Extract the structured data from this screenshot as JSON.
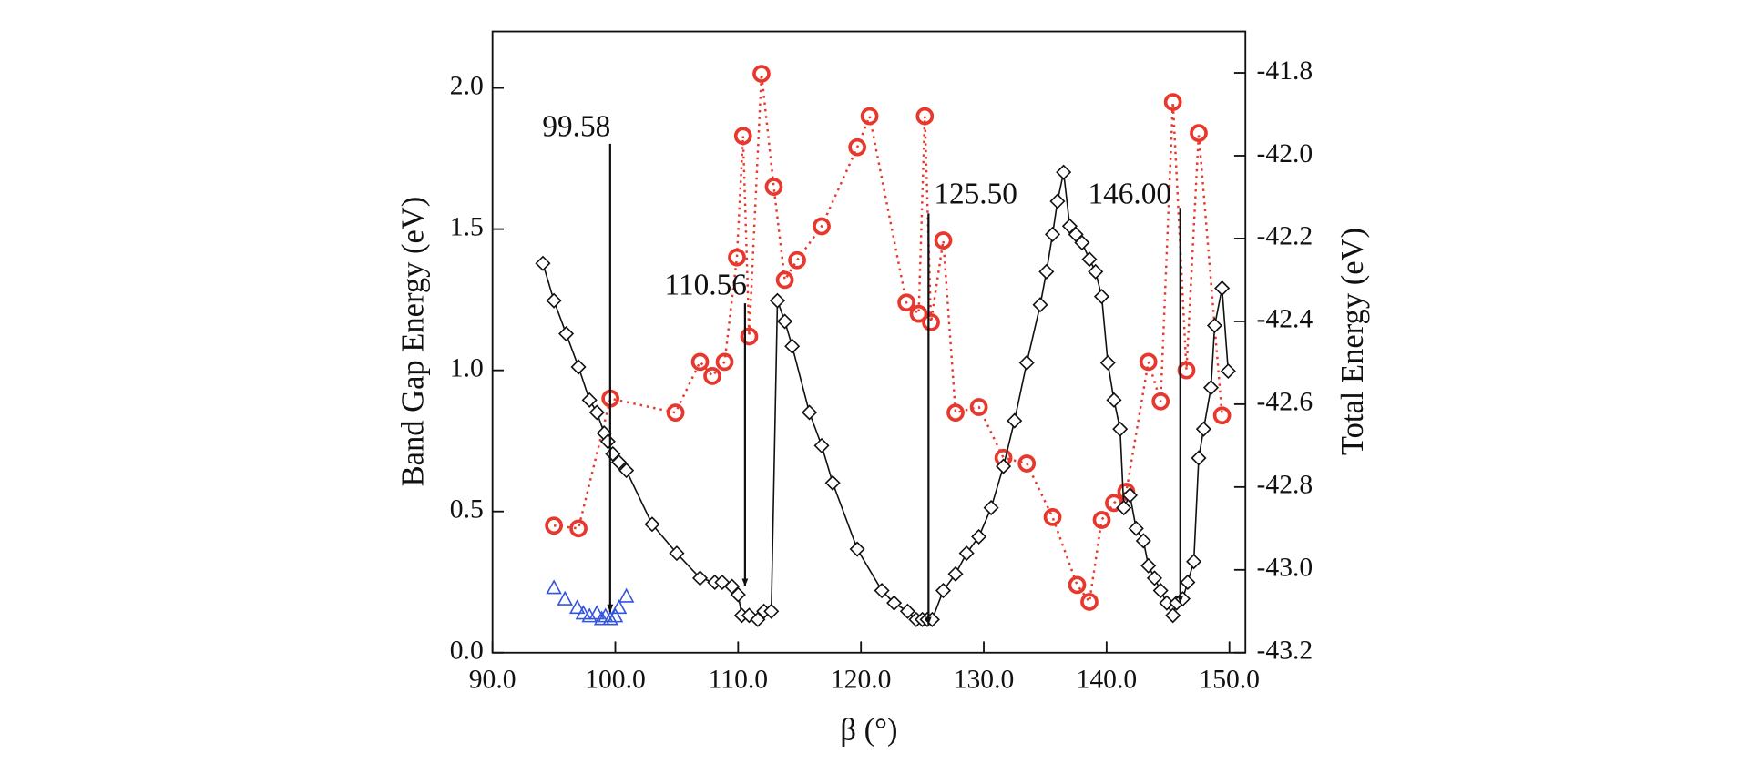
{
  "chart_data": {
    "type": "scatter",
    "x_label": "β (°)",
    "y_label": "Band Gap Energy (eV)",
    "y2_label": "Total Energy (eV)",
    "xlim": [
      90,
      151.3
    ],
    "ylim": [
      0,
      2.2
    ],
    "y2lim": [
      -43.2,
      -41.7
    ],
    "xticks": [
      {
        "value": 90,
        "label": "90.0"
      },
      {
        "value": 100,
        "label": "100.0"
      },
      {
        "value": 110,
        "label": "110.0"
      },
      {
        "value": 120,
        "label": "120.0"
      },
      {
        "value": 130,
        "label": "130.0"
      },
      {
        "value": 140,
        "label": "140.0"
      },
      {
        "value": 150,
        "label": "150.0"
      }
    ],
    "yticks": [
      {
        "value": 0,
        "label": "0.0"
      },
      0.5,
      {
        "value": 1,
        "label": "1.0"
      },
      1.5,
      {
        "value": 2,
        "label": "2.0"
      }
    ],
    "y2ticks": [
      -43.2,
      {
        "value": -43,
        "label": "-43.0"
      },
      -42.8,
      -42.6,
      -42.4,
      -42.2,
      {
        "value": -42,
        "label": "-42.0"
      },
      -41.8
    ],
    "annotations": [
      {
        "text": "99.58",
        "x": 99.58
      },
      {
        "text": "110.56",
        "x": 110.56
      },
      {
        "text": "125.50",
        "x": 125.5
      },
      {
        "text": "146.00",
        "x": 146.0
      }
    ],
    "series": [
      {
        "color": "#e8382d",
        "marker": "circle",
        "line": "dotted",
        "axis": "y",
        "x": [
          95.0,
          97.0,
          99.6,
          104.9,
          106.9,
          107.9,
          108.9,
          109.9,
          110.4,
          110.9,
          111.9,
          112.9,
          113.8,
          114.8,
          116.8,
          119.7,
          120.7,
          123.7,
          124.7,
          125.2,
          125.7,
          126.7,
          127.7,
          129.6,
          131.6,
          133.5,
          135.6,
          137.6,
          138.6,
          139.6,
          140.6,
          141.6,
          143.4,
          144.4,
          145.4,
          146.5,
          147.5,
          149.4
        ],
        "values": [
          0.45,
          0.44,
          0.9,
          0.85,
          1.03,
          0.98,
          1.03,
          1.4,
          1.83,
          1.12,
          2.05,
          1.65,
          1.32,
          1.39,
          1.51,
          1.79,
          1.9,
          1.24,
          1.2,
          1.9,
          1.17,
          1.46,
          0.85,
          0.87,
          0.69,
          0.67,
          0.48,
          0.24,
          0.18,
          0.47,
          0.53,
          0.57,
          1.03,
          0.89,
          1.95,
          1.0,
          1.84,
          0.84
        ]
      },
      {
        "color": "#3355dd",
        "marker": "triangle",
        "line": "none",
        "axis": "y",
        "x": [
          95.0,
          95.9,
          96.9,
          97.4,
          97.9,
          98.5,
          98.9,
          99.2,
          99.6,
          100.0,
          100.3,
          100.9
        ],
        "values": [
          0.23,
          0.19,
          0.16,
          0.14,
          0.13,
          0.14,
          0.12,
          0.13,
          0.12,
          0.13,
          0.16,
          0.2
        ]
      },
      {
        "color": "#111111",
        "marker": "diamond",
        "line": "solid",
        "axis": "y2",
        "x": [
          94.1,
          95.0,
          96.0,
          97.0,
          97.9,
          98.5,
          99.1,
          99.4,
          99.8,
          100.3,
          100.9,
          103.0,
          105.0,
          106.9,
          108.1,
          108.7,
          109.5,
          110.0,
          110.3,
          110.9,
          111.6,
          112.1,
          112.7,
          113.2,
          113.8,
          114.4,
          115.8,
          116.8,
          117.7,
          119.7,
          121.7,
          122.7,
          123.8,
          124.5,
          125.0,
          125.4,
          125.8,
          126.7,
          127.7,
          128.6,
          129.6,
          130.6,
          131.6,
          132.5,
          133.5,
          134.6,
          135.1,
          135.6,
          136.0,
          136.5,
          137.0,
          137.5,
          138.0,
          138.6,
          139.1,
          139.6,
          140.1,
          140.6,
          141.1,
          141.4,
          141.9,
          142.4,
          143.0,
          143.4,
          143.9,
          144.4,
          144.9,
          145.4,
          145.7,
          146.2,
          146.6,
          147.1,
          147.5,
          147.9,
          148.5,
          148.8,
          149.4,
          149.9
        ],
        "values": [
          -42.26,
          -42.35,
          -42.43,
          -42.51,
          -42.59,
          -42.62,
          -42.67,
          -42.69,
          -42.72,
          -42.74,
          -42.76,
          -42.89,
          -42.96,
          -43.02,
          -43.03,
          -43.03,
          -43.04,
          -43.06,
          -43.11,
          -43.11,
          -43.12,
          -43.1,
          -43.1,
          -42.35,
          -42.4,
          -42.46,
          -42.62,
          -42.7,
          -42.79,
          -42.95,
          -43.05,
          -43.08,
          -43.1,
          -43.12,
          -43.12,
          -43.12,
          -43.12,
          -43.05,
          -43.01,
          -42.96,
          -42.92,
          -42.85,
          -42.75,
          -42.64,
          -42.5,
          -42.36,
          -42.28,
          -42.19,
          -42.11,
          -42.04,
          -42.17,
          -42.19,
          -42.21,
          -42.25,
          -42.28,
          -42.34,
          -42.5,
          -42.59,
          -42.66,
          -42.85,
          -42.82,
          -42.9,
          -42.93,
          -42.99,
          -43.02,
          -43.05,
          -43.08,
          -43.11,
          -43.08,
          -43.07,
          -43.03,
          -42.98,
          -42.73,
          -42.66,
          -42.56,
          -42.41,
          -42.32,
          -42.52
        ]
      }
    ]
  }
}
